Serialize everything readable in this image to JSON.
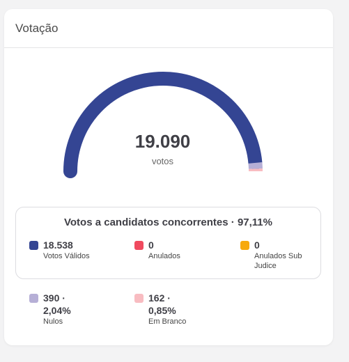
{
  "card": {
    "title": "Votação"
  },
  "gauge": {
    "value": "19.090",
    "unit": "votos",
    "segments": [
      {
        "name": "Votos Válidos",
        "fraction": 0.9711,
        "color": "#344593"
      },
      {
        "name": "Nulos",
        "fraction": 0.0204,
        "color": "#b6afd6"
      },
      {
        "name": "Em Branco",
        "fraction": 0.0085,
        "color": "#f8bcc1"
      }
    ]
  },
  "valid_votes": {
    "title": "Votos a candidatos concorrentes · 97,11%",
    "stats": [
      {
        "value": "18.538",
        "label": "Votos Válidos",
        "color": "#344593"
      },
      {
        "value": "0",
        "label": "Anulados",
        "color": "#f04a5f"
      },
      {
        "value": "0",
        "label": "Anulados Sub Judice",
        "color": "#f7a90c"
      }
    ]
  },
  "other_votes": {
    "stats": [
      {
        "value": "390 · 2,04%",
        "label": "Nulos",
        "color": "#b6afd6"
      },
      {
        "value": "162 · 0,85%",
        "label": "Em Branco",
        "color": "#f8bcc1"
      }
    ]
  }
}
